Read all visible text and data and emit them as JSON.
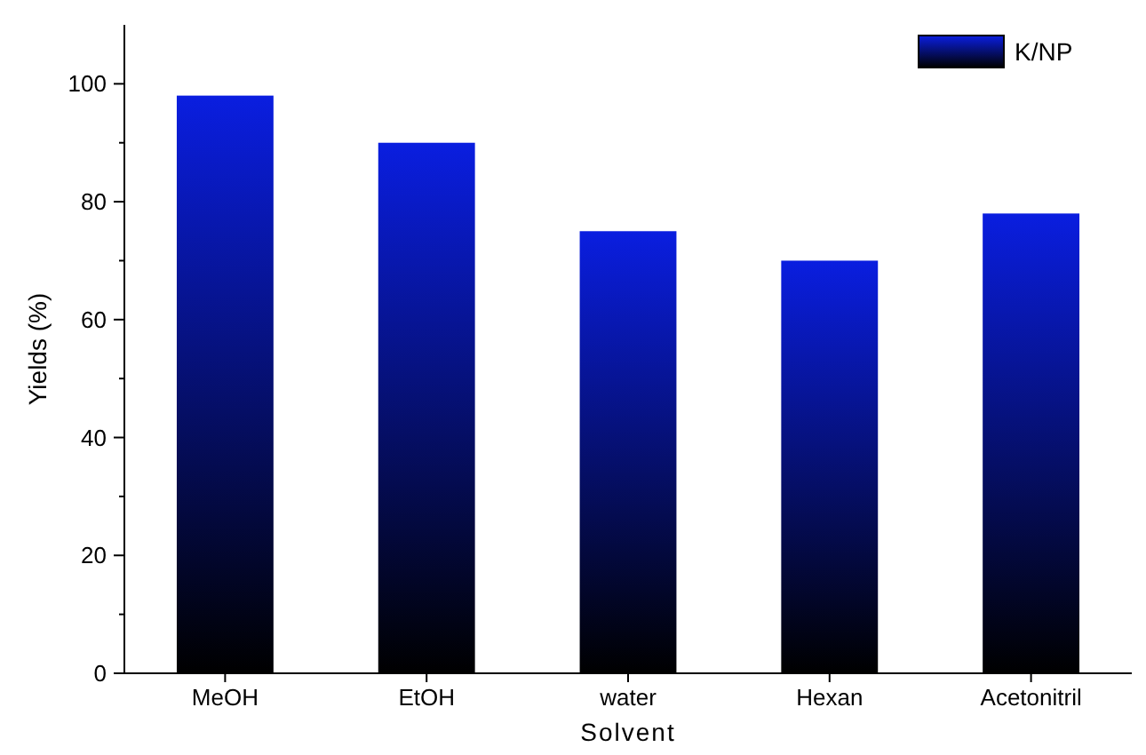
{
  "chart_data": {
    "type": "bar",
    "xlabel": "Solvent",
    "ylabel": "Yields (%)",
    "categories": [
      "MeOH",
      "EtOH",
      "water",
      "Hexan",
      "Acetonitril"
    ],
    "series": [
      {
        "name": "K/NP",
        "color": "#0a1ee0",
        "values": [
          98,
          90,
          75,
          70,
          78
        ]
      }
    ],
    "ylim": [
      0,
      110
    ],
    "yticks": [
      0,
      20,
      40,
      60,
      80,
      100
    ],
    "grid": false,
    "legend": "top right"
  }
}
